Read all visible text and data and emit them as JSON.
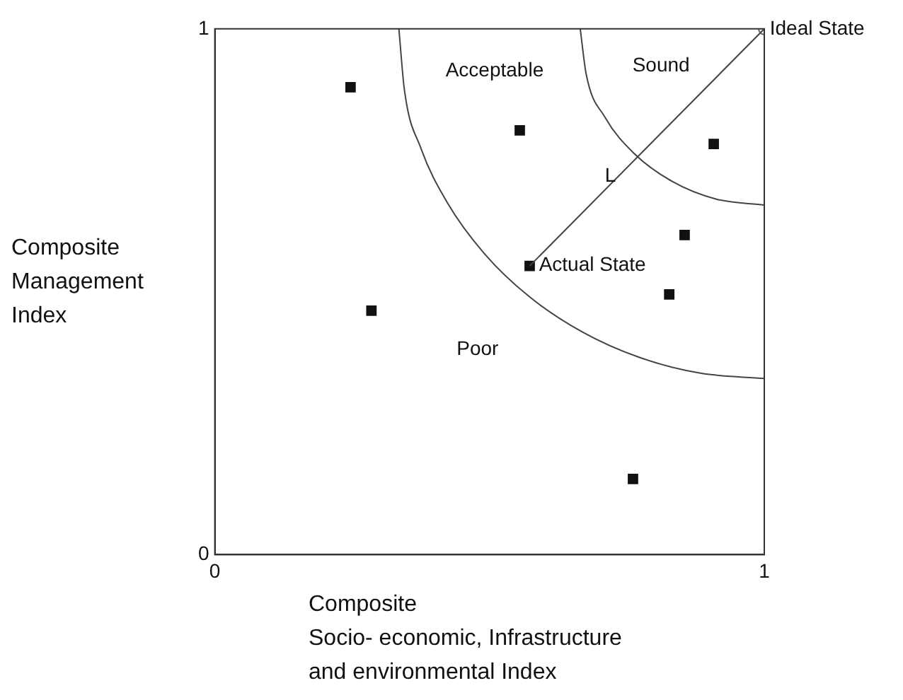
{
  "chart_data": {
    "type": "scatter",
    "xlabel": "Composite\nSocio- economic, Infrastructure\nand environmental Index",
    "ylabel": "Composite\nManagement\nIndex",
    "xlim": [
      0,
      1
    ],
    "ylim": [
      0,
      1
    ],
    "xticks": [
      0,
      1
    ],
    "yticks": [
      0,
      1
    ],
    "grid": false,
    "legend": false,
    "series": [
      {
        "type": "line",
        "color": "#444444",
        "marker": "none",
        "x": [
          0.335,
          0.345,
          0.375,
          0.424,
          0.491,
          0.572,
          0.668,
          0.773,
          0.884,
          1
        ],
        "values": [
          1,
          0.884,
          0.773,
          0.668,
          0.572,
          0.491,
          0.424,
          0.375,
          0.345,
          0.335
        ]
      },
      {
        "type": "line",
        "color": "#444444",
        "marker": "none",
        "x": [
          0.665,
          0.676,
          0.71,
          0.763,
          0.832,
          0.913,
          1
        ],
        "values": [
          1,
          0.913,
          0.832,
          0.763,
          0.71,
          0.676,
          0.665
        ]
      },
      {
        "type": "line",
        "color": "#444444",
        "marker": "none",
        "x": [
          0.573,
          1
        ],
        "values": [
          0.549,
          1
        ]
      },
      {
        "type": "scatter",
        "color": "#111111",
        "marker": "square",
        "x": [
          0.247,
          0.555,
          0.908,
          0.855,
          0.573,
          0.827,
          0.285,
          0.761
        ],
        "values": [
          0.889,
          0.807,
          0.781,
          0.608,
          0.549,
          0.495,
          0.464,
          0.144
        ]
      },
      {
        "type": "scatter",
        "color": "#666666",
        "marker": "circle",
        "x": [
          1
        ],
        "values": [
          1
        ]
      }
    ],
    "annotations": [
      "Acceptable",
      "Sound",
      "Poor",
      "L",
      {
        "text": "Actual State",
        "x": 0.59,
        "y": 0.55
      },
      {
        "text": "Ideal State",
        "x": 1.01,
        "y": 1
      }
    ]
  }
}
